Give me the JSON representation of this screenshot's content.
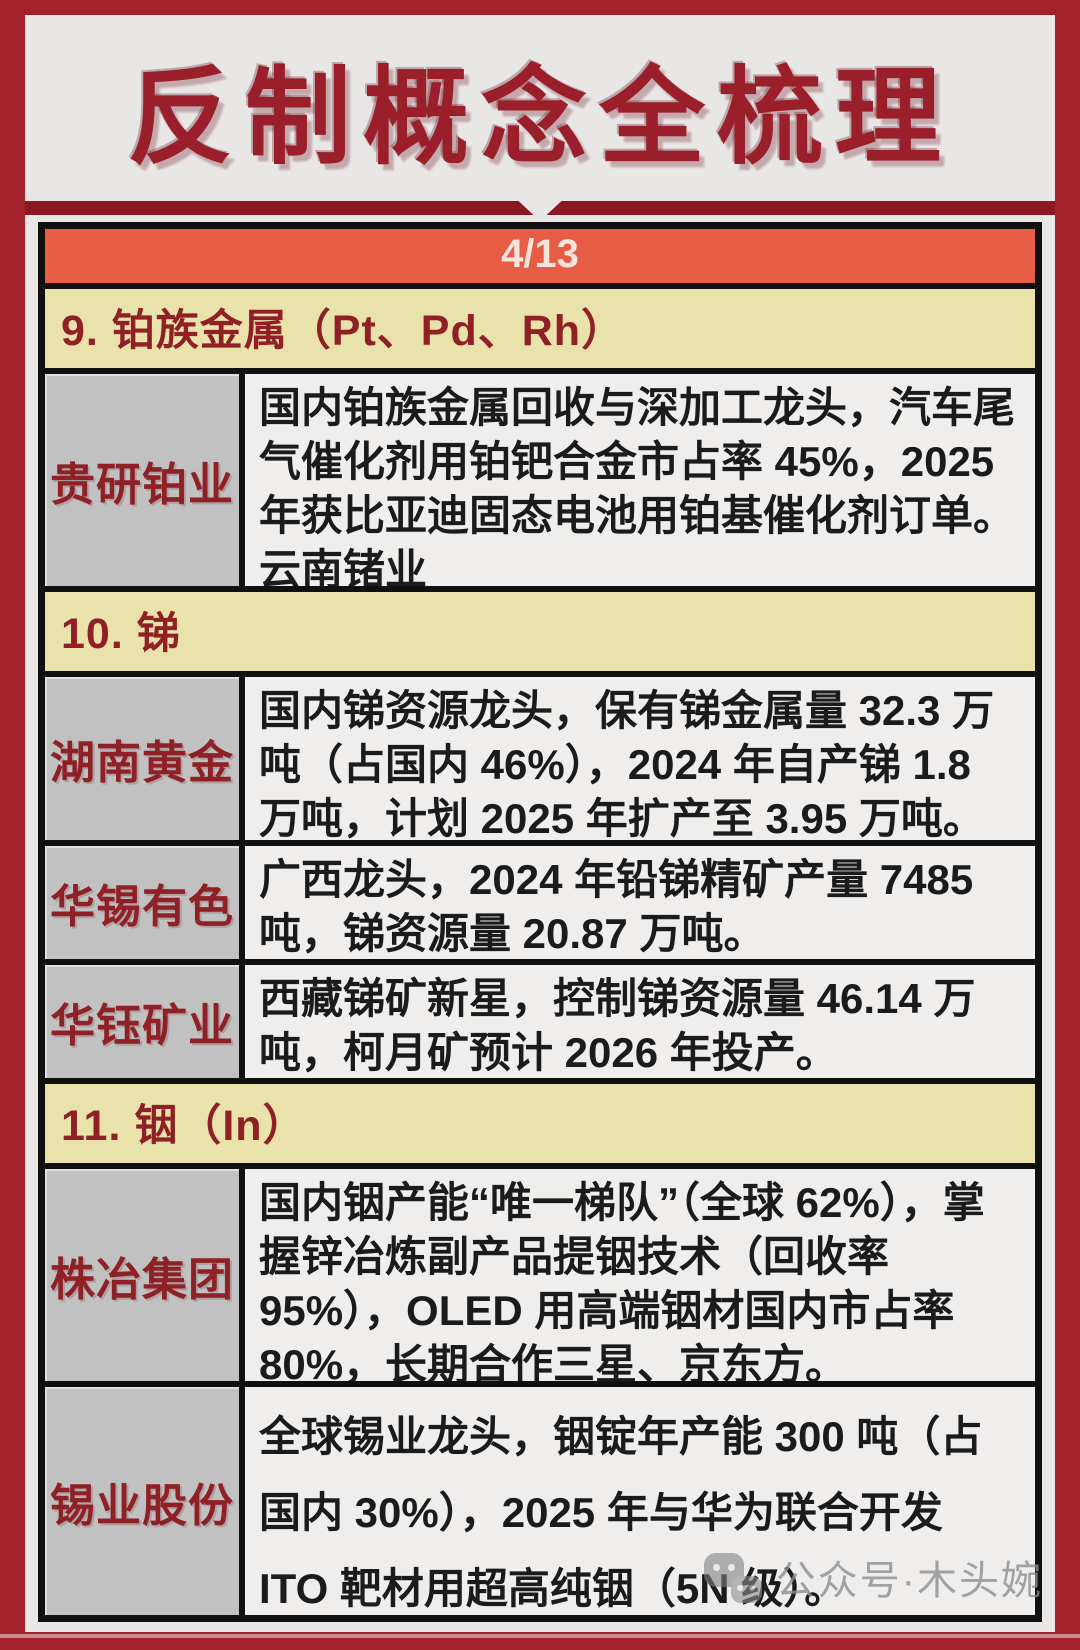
{
  "header": {
    "title": "反制概念全梳理"
  },
  "pagination": {
    "current": "4/13"
  },
  "sections": [
    {
      "heading": "9. 铂族金属（Pt、Pd、Rh）",
      "rows": [
        {
          "company": "贵研铂业",
          "description": "国内铂族金属回收与深加工龙头，汽车尾气催化剂用铂钯合金市占率 45%，2025 年获比亚迪固态电池用铂基催化剂订单。云南锗业"
        }
      ]
    },
    {
      "heading": "10. 锑",
      "rows": [
        {
          "company": "湖南黄金",
          "description": "国内锑资源龙头，保有锑金属量 32.3 万吨（占国内 46%），2024 年自产锑 1.8 万吨，计划 2025 年扩产至 3.95 万吨。"
        },
        {
          "company": "华锡有色",
          "description": "广西龙头，2024 年铅锑精矿产量 7485 吨，锑资源量 20.87 万吨。"
        },
        {
          "company": "华钰矿业",
          "description": "西藏锑矿新星，控制锑资源量 46.14 万吨，柯月矿预计 2026 年投产。"
        }
      ]
    },
    {
      "heading": "11. 铟（In）",
      "rows": [
        {
          "company": "株冶集团",
          "description": "国内铟产能“唯一梯队”（全球 62%），掌握锌冶炼副产品提铟技术（回收率 95%），OLED 用高端铟材国内市占率 80%，长期合作三星、京东方。"
        },
        {
          "company": "锡业股份",
          "description": "全球锡业龙头，铟锭年产能 300 吨（占国内 30%），2025 年与华为联合开发 ITO 靶材用超高纯铟（5N 级）。"
        }
      ]
    }
  ],
  "watermark": {
    "label": "公众号·木头婉",
    "icon": "wechat-icon"
  },
  "colors": {
    "frame_red": "#a2212d",
    "ribbon_red": "#8c1824",
    "page_bg": "#e9e7e6",
    "pagebar_orange": "#e65c44",
    "pagebar_text": "#f6e3dc",
    "section_yellow": "#eae2ab",
    "company_gray": "#c2c1c1",
    "dark_red_text": "#8e2026",
    "table_border": "#101010"
  }
}
